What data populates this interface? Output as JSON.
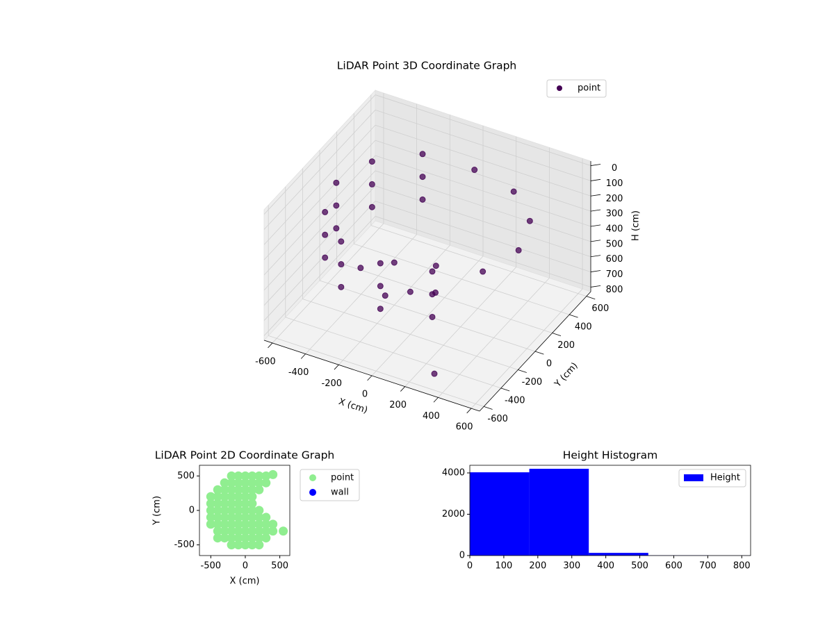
{
  "chart_data": [
    {
      "type": "scatter3d",
      "title": "LiDAR Point 3D Coordinate Graph",
      "xlabel": "X (cm)",
      "ylabel": "Y (cm)",
      "zlabel": "H (cm)",
      "xlim": [
        -650,
        650
      ],
      "ylim": [
        -650,
        650
      ],
      "zlim": [
        -30,
        830
      ],
      "invert_z": true,
      "xticks": [
        -600,
        -400,
        -200,
        0,
        200,
        400,
        600
      ],
      "yticks": [
        -600,
        -400,
        -200,
        0,
        200,
        400,
        600
      ],
      "zticks": [
        0,
        100,
        200,
        300,
        400,
        500,
        600,
        700,
        800
      ],
      "grid": true,
      "legend": "upper right",
      "series": [
        {
          "name": "point",
          "color": "#440154",
          "x": [
            -275,
            -476,
            -550,
            -476,
            -275,
            0,
            275,
            -275,
            -476,
            -550,
            -476,
            -275,
            0,
            275,
            -275,
            -476,
            -550,
            -476,
            -275,
            0,
            275,
            476,
            550,
            476,
            275,
            0,
            -200,
            0,
            -100,
            -300,
            100,
            0,
            300
          ],
          "y": [
            476,
            275,
            0,
            -275,
            -476,
            -550,
            -476,
            476,
            275,
            0,
            -275,
            -476,
            -550,
            -476,
            476,
            275,
            0,
            -275,
            -476,
            -550,
            -476,
            -275,
            0,
            275,
            476,
            550,
            0,
            -200,
            -300,
            -200,
            -100,
            100,
            -500
          ],
          "z": [
            150,
            150,
            150,
            150,
            150,
            150,
            150,
            300,
            300,
            300,
            300,
            300,
            300,
            300,
            450,
            450,
            450,
            450,
            450,
            450,
            450,
            200,
            200,
            200,
            200,
            200,
            550,
            550,
            550,
            500,
            580,
            560,
            800
          ]
        }
      ]
    },
    {
      "type": "scatter",
      "title": "LiDAR Point 2D Coordinate Graph",
      "xlabel": "X (cm)",
      "ylabel": "Y (cm)",
      "xlim": [
        -664,
        645
      ],
      "ylim": [
        -655,
        655
      ],
      "xticks": [
        -500,
        0,
        500
      ],
      "yticks": [
        -500,
        0,
        500
      ],
      "legend": "outside upper right",
      "series": [
        {
          "name": "point",
          "color": "#90ee90",
          "x": [
            -200,
            -100,
            0,
            100,
            200,
            300,
            -300,
            -200,
            -100,
            0,
            100,
            200,
            300,
            -400,
            -300,
            -200,
            -100,
            0,
            100,
            200,
            -500,
            -400,
            -300,
            -200,
            -100,
            0,
            100,
            -500,
            -400,
            -300,
            -200,
            -100,
            0,
            100,
            -500,
            -400,
            -300,
            -200,
            -100,
            0,
            100,
            200,
            -500,
            -400,
            -300,
            -200,
            -100,
            0,
            100,
            200,
            300,
            -500,
            -400,
            -300,
            -200,
            -100,
            0,
            100,
            200,
            300,
            400,
            -400,
            -300,
            -200,
            -100,
            0,
            100,
            200,
            300,
            400,
            -400,
            -300,
            -200,
            -100,
            0,
            100,
            200,
            300,
            -200,
            -100,
            0,
            100,
            200,
            400,
            550
          ],
          "y": [
            500,
            500,
            500,
            500,
            500,
            500,
            400,
            400,
            400,
            400,
            400,
            400,
            400,
            300,
            300,
            300,
            300,
            300,
            300,
            300,
            200,
            200,
            200,
            200,
            200,
            200,
            200,
            100,
            100,
            100,
            100,
            100,
            100,
            100,
            0,
            0,
            0,
            0,
            0,
            0,
            0,
            0,
            -100,
            -100,
            -100,
            -100,
            -100,
            -100,
            -100,
            -100,
            -100,
            -200,
            -200,
            -200,
            -200,
            -200,
            -200,
            -200,
            -200,
            -200,
            -200,
            -300,
            -300,
            -300,
            -300,
            -300,
            -300,
            -300,
            -300,
            -300,
            -400,
            -400,
            -400,
            -400,
            -400,
            -400,
            -400,
            -400,
            -500,
            -500,
            -500,
            -500,
            -500,
            520,
            -300
          ]
        },
        {
          "name": "wall",
          "color": "#0000ff",
          "x": [],
          "y": []
        }
      ]
    },
    {
      "type": "histogram",
      "title": "Height Histogram",
      "bins": [
        0,
        175,
        350,
        525,
        700,
        875
      ],
      "counts": [
        4030,
        4200,
        130,
        10,
        5
      ],
      "color": "#0000ff",
      "series_name": "Height",
      "xlim": [
        0,
        826
      ],
      "ylim": [
        0,
        4370
      ],
      "xticks": [
        0,
        100,
        200,
        300,
        400,
        500,
        600,
        700,
        800
      ],
      "yticks": [
        0,
        2000,
        4000
      ],
      "legend": "upper right"
    }
  ]
}
